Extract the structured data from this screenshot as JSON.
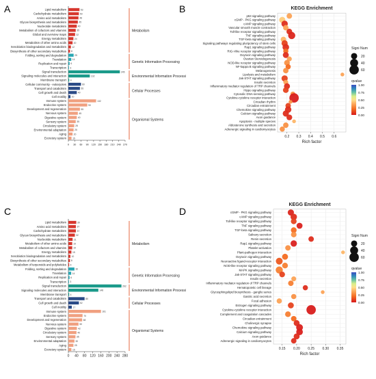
{
  "figure": {
    "background": "#ffffff"
  },
  "colors": {
    "metabolism": "#d7372e",
    "genetic": "#2aa7b3",
    "environmental": "#1b9a8a",
    "cellular": "#2b4a86",
    "organismal": "#f0a080",
    "bracket": "#e4592c",
    "qvalue_gradient": [
      "#d7191c",
      "#f46d21",
      "#fdae61",
      "#fee08b",
      "#d9ef8b",
      "#66c2a5",
      "#3288bd",
      "#3b4cc0"
    ]
  },
  "chart_data": [
    {
      "panel": "A",
      "type": "bar",
      "orientation": "horizontal",
      "categories": [
        "Lipid metabolism",
        "Carbohydrate metabolism",
        "Amino acid metabolism",
        "Glycan biosynthesis and metabolism",
        "Nucleotide metabolism",
        "Metabolism of cofactors and vitamins",
        "Global and overview maps",
        "Energy metabolism",
        "Metabolism of other amino acids",
        "Xenobiotics biodegradation and metabolism",
        "Biosynthesis of other secondary metabolites",
        "Folding, sorting and degradation",
        "Translation",
        "Replication and repair",
        "Transcription",
        "Signal transduction",
        "Signaling molecules and interaction",
        "Membrane transport",
        "Cellular community - eukaryotes",
        "Transport and catabolism",
        "Cell growth and death",
        "Cell motility",
        "Immune system",
        "Endocrine system",
        "Development and regeneration",
        "Nervous system",
        "Digestive system",
        "Sensory system",
        "Circulatory system",
        "Environmental adaptation",
        "Aging",
        "Excretory system"
      ],
      "values": [
        53,
        50,
        48,
        45,
        40,
        35,
        32,
        24,
        20,
        12,
        8,
        25,
        14,
        6,
        3,
        245,
        102,
        4,
        60,
        55,
        40,
        10,
        132,
        90,
        55,
        45,
        40,
        35,
        28,
        25,
        20,
        15
      ],
      "value_labels": [
        "53",
        "50",
        "48",
        "45",
        "40",
        "35",
        "32",
        "24",
        "20",
        "12",
        "8",
        "25",
        "14",
        "6",
        "3",
        "245",
        "102",
        "4",
        "60",
        "55",
        "40",
        "10",
        "132",
        "90",
        "55",
        "45",
        "40",
        "35",
        "28",
        "25",
        "20",
        "15"
      ],
      "groups": [
        {
          "label": "Metabolism",
          "start": 0,
          "end": 10,
          "color_key": "metabolism"
        },
        {
          "label": "Genetic Information Processing",
          "start": 11,
          "end": 14,
          "color_key": "genetic"
        },
        {
          "label": "Environmental Information Processi",
          "start": 15,
          "end": 17,
          "color_key": "environmental"
        },
        {
          "label": "Cellular Processes",
          "start": 18,
          "end": 21,
          "color_key": "cellular"
        },
        {
          "label": "Organismal Systems",
          "start": 22,
          "end": 31,
          "color_key": "organismal"
        }
      ],
      "xlim": [
        0,
        270
      ],
      "xticks": [
        "0",
        "30",
        "60",
        "90",
        "120",
        "150",
        "180",
        "210",
        "240",
        "270"
      ],
      "xtick_values": [
        0,
        30,
        60,
        90,
        120,
        150,
        180,
        210,
        240,
        270
      ]
    },
    {
      "panel": "B",
      "type": "scatter",
      "title": "KEGG Enrichment",
      "xlabel": "Rich factor",
      "categories": [
        "p53 signaling pathway",
        "cGMP - PKG signaling pathway",
        "cAMP signaling pathway",
        "Vascular smooth muscle contraction",
        "Toll-like receptor signaling pathway",
        "TNF signaling pathway",
        "TGF-beta signaling pathway",
        "Signaling pathways regulating pluripotency of stem cells",
        "Rap1 signaling pathway",
        "RIG-I-like receptor signaling pathway",
        "Oxytocin signaling pathway",
        "Ovarian Steroidogenesis",
        "NOD-like receptor signaling pathway",
        "NF-kappa B signaling pathway",
        "Melanogenesis",
        "Lipolysis and metabolism",
        "Jak-STAT signaling pathway",
        "Insulin secretion",
        "Inflammatory mediator regulation of TRP channels",
        "Hippo signaling pathway",
        "Cytosolic DNA-sensing pathway",
        "Cytokine-cytokine receptor interaction",
        "Circadian rhythm",
        "Circadian entrainment",
        "Chemokine signaling pathway",
        "Calcium signaling pathway",
        "Axon guidance",
        "Apoptosis - multiple species",
        "Aldosterone synthesis and secretion",
        "Adrenergic signaling in cardiomyocytes"
      ],
      "x": [
        0.22,
        0.16,
        0.18,
        0.19,
        0.22,
        0.24,
        0.17,
        0.18,
        0.19,
        0.19,
        0.19,
        0.22,
        0.2,
        0.21,
        0.19,
        0.67,
        0.18,
        0.19,
        0.2,
        0.19,
        0.25,
        0.26,
        0.23,
        0.21,
        0.21,
        0.19,
        0.22,
        0.26,
        0.19,
        0.16
      ],
      "sizes": [
        14,
        20,
        22,
        14,
        16,
        30,
        14,
        20,
        24,
        12,
        18,
        10,
        16,
        12,
        14,
        4,
        20,
        10,
        18,
        16,
        10,
        60,
        4,
        14,
        22,
        20,
        16,
        4,
        14,
        12
      ],
      "qvalue": [
        0.35,
        0.45,
        0.05,
        0.35,
        0.05,
        0.03,
        0.4,
        0.1,
        0.05,
        0.2,
        0.05,
        0.35,
        0.3,
        0.2,
        0.3,
        0.35,
        0.1,
        0.35,
        0.05,
        0.1,
        0.3,
        0.01,
        0.3,
        0.1,
        0.05,
        0.05,
        0.05,
        0.4,
        0.3,
        0.3
      ],
      "xlim": [
        0.12,
        0.7
      ],
      "xticks": [
        "0.2",
        "0.3",
        "0.4",
        "0.5",
        "0.6"
      ],
      "xtick_values": [
        0.2,
        0.3,
        0.4,
        0.5,
        0.6
      ],
      "legend": {
        "size_title": "Signi Num",
        "size_items": [
          {
            "label": "20",
            "value": 20
          },
          {
            "label": "40",
            "value": 40
          },
          {
            "label": "60",
            "value": 60
          }
        ],
        "color_title": "qvalue",
        "color_ticks": [
          "1.00",
          "0.75",
          "0.50",
          "0.25",
          "0.00"
        ],
        "placement": "right"
      },
      "grid": true
    },
    {
      "panel": "C",
      "type": "bar",
      "orientation": "horizontal",
      "categories": [
        "Lipid metabolism",
        "Amino acid metabolism",
        "Carbohydrate metabolism",
        "Glycan biosynthesis and metabolism",
        "Nucleotide metabolism",
        "Metabolism of other amino acids",
        "Metabolism of cofactors and vitamins",
        "Energy metabolism",
        "Xenobiotics biodegradation and metabolism",
        "Biosynthesis of other secondary metabolites",
        "Metabolism of terpenoids and polyketides",
        "Folding, sorting and degradation",
        "Translation",
        "Replication and repair",
        "Transcription",
        "Signal transduction",
        "Signaling molecules and interaction",
        "Membrane transport",
        "Transport and catabolism",
        "Cell growth and death",
        "Cell motility",
        "Immune system",
        "Endocrine system",
        "Development and regeneration",
        "Nervous system",
        "Digestive system",
        "Circulatory system",
        "Sensory system",
        "Environmental adaptation",
        "Aging",
        "Excretory system"
      ],
      "values": [
        39,
        37,
        37,
        32,
        21,
        19,
        19,
        15,
        10,
        8,
        4,
        30,
        14,
        6,
        3,
        262,
        148,
        4,
        80,
        52,
        17,
        161,
        70,
        68,
        50,
        42,
        40,
        35,
        30,
        25,
        15
      ],
      "value_labels": [
        "39",
        "37",
        "37",
        "32",
        "21",
        "19",
        "19",
        "15",
        "10",
        "8",
        "4",
        "30",
        "14",
        "6",
        "3",
        "262",
        "148",
        "4",
        "80",
        "52",
        "17",
        "161",
        "70",
        "68",
        "50",
        "42",
        "40",
        "35",
        "30",
        "25",
        "15"
      ],
      "groups": [
        {
          "label": "Metabolism",
          "start": 0,
          "end": 10,
          "color_key": "metabolism"
        },
        {
          "label": "Genetic Information Processing",
          "start": 11,
          "end": 14,
          "color_key": "genetic"
        },
        {
          "label": "Environmental Information Processi",
          "start": 15,
          "end": 17,
          "color_key": "environmental"
        },
        {
          "label": "Cellular Processes",
          "start": 18,
          "end": 20,
          "color_key": "cellular"
        },
        {
          "label": "Organismal Systems",
          "start": 21,
          "end": 30,
          "color_key": "organismal"
        }
      ],
      "xlim": [
        0,
        280
      ],
      "xticks": [
        "0",
        "40",
        "80",
        "120",
        "160",
        "200",
        "240",
        "280"
      ],
      "xtick_values": [
        0,
        40,
        80,
        120,
        160,
        200,
        240,
        280
      ]
    },
    {
      "panel": "D",
      "type": "scatter",
      "title": "KEGG Enrichment",
      "xlabel": "Rich factor",
      "categories": [
        "cGMP - PKG signaling pathway",
        "cAMP signaling pathway",
        "Toll-like receptor signaling pathway",
        "TNF signaling pathway",
        "TGF-beta signaling pathway",
        "Salivary secretion",
        "Renin secretion",
        "Rap1 signaling pathway",
        "Platelet activation",
        "Plant-pathogen interaction",
        "Oxytocin signaling pathway",
        "Neuroactive ligand-receptor interaction",
        "NOD-like receptor signaling pathway",
        "MAPK signaling pathway",
        "Jak-STAT signaling pathway",
        "Insulin secretion",
        "Inflammatory mediator regulation of TRP channels",
        "Hematopoietic cell lineage",
        "Glycosphingolipid biosynthesis - ganglio series",
        "Gastric acid secretion",
        "Focal adhesion",
        "Estrogen signaling pathway",
        "Cytokine-cytokine receptor interaction",
        "Complement and coagulation cascades",
        "Circadian entrainment",
        "Cholinergic synapse",
        "Chemokine signaling pathway",
        "Calcium signaling pathway",
        "Axon guidance",
        "Adrenergic signaling in cardiomyocytes"
      ],
      "x": [
        0.18,
        0.19,
        0.19,
        0.21,
        0.19,
        0.19,
        0.25,
        0.19,
        0.17,
        0.36,
        0.16,
        0.14,
        0.16,
        0.14,
        0.15,
        0.19,
        0.18,
        0.23,
        0.29,
        0.19,
        0.14,
        0.18,
        0.25,
        0.17,
        0.19,
        0.2,
        0.21,
        0.21,
        0.2,
        0.19
      ],
      "sizes": [
        20,
        22,
        16,
        18,
        16,
        14,
        14,
        22,
        14,
        4,
        18,
        26,
        16,
        30,
        16,
        10,
        14,
        12,
        4,
        12,
        12,
        18,
        60,
        16,
        14,
        18,
        26,
        24,
        18,
        14
      ],
      "qvalue": [
        0.03,
        0.05,
        0.1,
        0.02,
        0.2,
        0.3,
        0.05,
        0.02,
        0.3,
        0.4,
        0.2,
        0.15,
        0.25,
        0.25,
        0.1,
        0.35,
        0.25,
        0.05,
        0.35,
        0.3,
        0.35,
        0.1,
        0.01,
        0.25,
        0.2,
        0.05,
        0.02,
        0.02,
        0.05,
        0.05
      ],
      "xlim": [
        0.12,
        0.37
      ],
      "xticks": [
        "0.15",
        "0.20",
        "0.25",
        "0.30",
        "0.35"
      ],
      "xtick_values": [
        0.15,
        0.2,
        0.25,
        0.3,
        0.35
      ],
      "legend": {
        "size_title": "Signi Num",
        "size_items": [
          {
            "label": "20",
            "value": 20
          },
          {
            "label": "40",
            "value": 40
          },
          {
            "label": "60",
            "value": 60
          }
        ],
        "color_title": "qvalue",
        "color_ticks": [
          "1.00",
          "0.75",
          "0.50",
          "0.25",
          "0.00"
        ],
        "placement": "right"
      },
      "grid": true
    }
  ]
}
